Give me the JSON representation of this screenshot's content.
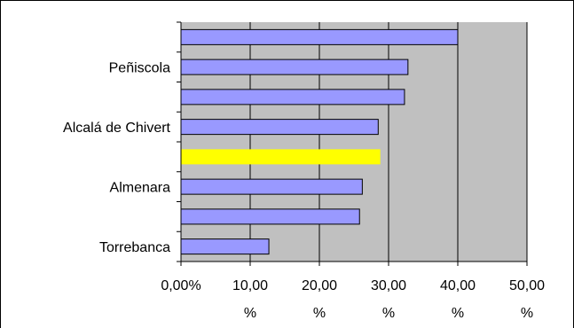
{
  "chart_data": {
    "type": "bar",
    "orientation": "horizontal",
    "categories": [
      "",
      "Peñiscola",
      "",
      "Alcalá de Chivert",
      "",
      "Almenara",
      "",
      "Torrebanca"
    ],
    "values": [
      40.0,
      32.8,
      32.3,
      28.5,
      28.8,
      26.2,
      25.8,
      12.7
    ],
    "xlim": [
      0,
      50
    ],
    "x_ticks": [
      0,
      10,
      20,
      30,
      40,
      50
    ],
    "x_tick_labels": [
      [
        "0,00%",
        ""
      ],
      [
        "10,00",
        "%"
      ],
      [
        "20,00",
        "%"
      ],
      [
        "30,00",
        "%"
      ],
      [
        "40,00",
        "%"
      ],
      [
        "50,00",
        "%"
      ]
    ],
    "grid": "vertical",
    "colors": {
      "bar": "#9999ff",
      "highlight": "#ffff00",
      "plot_background": "#c0c0c0",
      "gridline": "#000000"
    },
    "highlight_index": 4,
    "legend": "none"
  }
}
